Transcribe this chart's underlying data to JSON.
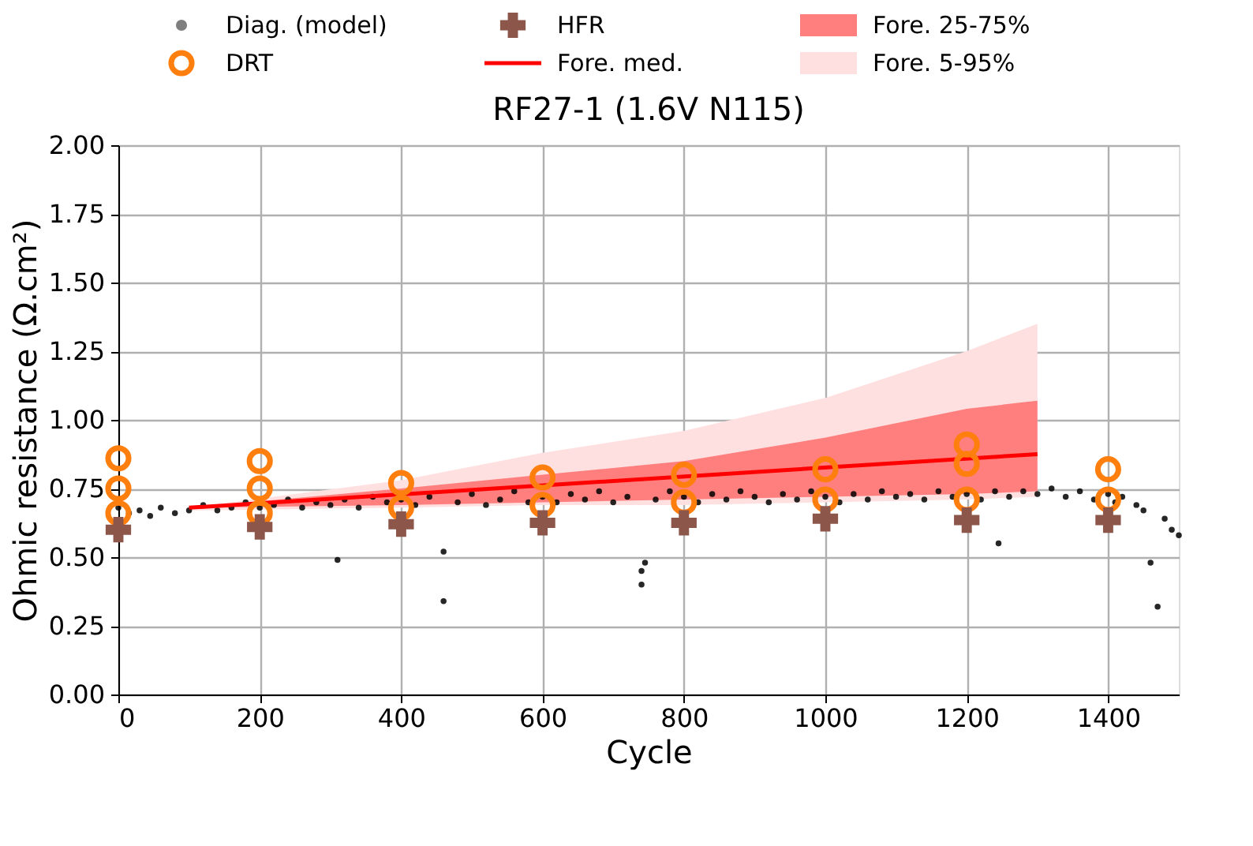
{
  "chart_data": {
    "type": "scatter",
    "title": "RF27-1 (1.6V N115)",
    "xlabel": "Cycle",
    "ylabel": "Ohmic resistance (Ω.cm²)",
    "xlim": [
      0,
      1500
    ],
    "xticks": [
      0,
      200,
      400,
      600,
      800,
      1000,
      1200,
      1400
    ],
    "ylim": [
      0,
      2
    ],
    "yticks": [
      {
        "value": 0,
        "label": "0.00"
      },
      {
        "value": 0.25,
        "label": "0.25"
      },
      {
        "value": 0.5,
        "label": "0.50"
      },
      {
        "value": 0.75,
        "label": "0.75"
      },
      {
        "value": 1,
        "label": "1.00"
      },
      {
        "value": 1.25,
        "label": "1.25"
      },
      {
        "value": 1.5,
        "label": "1.50"
      },
      {
        "value": 1.75,
        "label": "1.75"
      },
      {
        "value": 2,
        "label": "2.00"
      }
    ],
    "grid": true,
    "legend": "top",
    "series": [
      {
        "name": "Fore. 5-95%",
        "type": "line",
        "color": "#ffe0e0",
        "x": [
          100,
          400,
          600,
          800,
          1000,
          1200,
          1300
        ],
        "values": [
          null,
          null,
          null,
          null,
          null,
          null,
          null
        ],
        "lower": [
          0.67,
          0.68,
          0.69,
          0.69,
          0.7,
          0.71,
          0.72
        ],
        "upper": [
          0.68,
          0.78,
          0.88,
          0.96,
          1.08,
          1.25,
          1.35
        ]
      },
      {
        "name": "Fore. 25-75%",
        "type": "line",
        "color": "#ff7f7f",
        "x": [
          100,
          400,
          600,
          800,
          1000,
          1200,
          1300
        ],
        "values": [
          null,
          null,
          null,
          null,
          null,
          null,
          null
        ],
        "lower": [
          0.68,
          0.69,
          0.7,
          0.71,
          0.72,
          0.73,
          0.74
        ],
        "upper": [
          0.68,
          0.75,
          0.8,
          0.85,
          0.935,
          1.04,
          1.07
        ]
      },
      {
        "name": "Diag. (model)",
        "color": "#000000",
        "x": [
          0,
          15,
          30,
          45,
          60,
          80,
          100,
          120,
          140,
          160,
          180,
          200,
          220,
          240,
          260,
          280,
          300,
          310,
          320,
          340,
          360,
          380,
          400,
          420,
          440,
          460,
          460,
          480,
          500,
          520,
          540,
          560,
          580,
          600,
          620,
          640,
          660,
          680,
          700,
          720,
          740,
          740,
          745,
          760,
          780,
          800,
          820,
          840,
          860,
          880,
          900,
          920,
          940,
          960,
          980,
          1000,
          1020,
          1040,
          1060,
          1080,
          1100,
          1120,
          1140,
          1160,
          1180,
          1200,
          1220,
          1240,
          1245,
          1260,
          1280,
          1300,
          1320,
          1340,
          1360,
          1380,
          1400,
          1410,
          1420,
          1440,
          1450,
          1460,
          1470,
          1480,
          1490,
          1500
        ],
        "values": [
          0.68,
          0.66,
          0.67,
          0.65,
          0.68,
          0.66,
          0.67,
          0.69,
          0.67,
          0.68,
          0.7,
          0.68,
          0.69,
          0.71,
          0.68,
          0.7,
          0.69,
          0.49,
          0.71,
          0.68,
          0.72,
          0.7,
          0.71,
          0.69,
          0.72,
          0.34,
          0.52,
          0.7,
          0.73,
          0.69,
          0.71,
          0.74,
          0.7,
          0.72,
          0.7,
          0.73,
          0.71,
          0.74,
          0.7,
          0.72,
          0.4,
          0.45,
          0.48,
          0.71,
          0.74,
          0.72,
          0.7,
          0.73,
          0.71,
          0.74,
          0.72,
          0.7,
          0.73,
          0.71,
          0.74,
          0.72,
          0.7,
          0.73,
          0.71,
          0.74,
          0.72,
          0.73,
          0.71,
          0.74,
          0.72,
          0.73,
          0.71,
          0.74,
          0.55,
          0.72,
          0.74,
          0.73,
          0.75,
          0.72,
          0.74,
          0.71,
          0.73,
          0.7,
          0.72,
          0.69,
          0.67,
          0.48,
          0.32,
          0.64,
          0.6,
          0.58
        ]
      },
      {
        "name": "Fore. med.",
        "type": "line",
        "color": "#ff0000",
        "x": [
          100,
          1300
        ],
        "values": [
          0.68,
          0.875
        ]
      },
      {
        "name": "DRT",
        "marker": "circle",
        "color": "#ff7f0e",
        "x": [
          0,
          0,
          0,
          200,
          200,
          200,
          400,
          400,
          600,
          600,
          800,
          800,
          1000,
          1000,
          1200,
          1200,
          1200,
          1400,
          1400
        ],
        "values": [
          0.86,
          0.75,
          0.66,
          0.85,
          0.75,
          0.66,
          0.77,
          0.68,
          0.79,
          0.69,
          0.8,
          0.7,
          0.82,
          0.71,
          0.91,
          0.84,
          0.71,
          0.82,
          0.71
        ]
      },
      {
        "name": "HFR",
        "marker": "cross",
        "color": "#8c564b",
        "x": [
          0,
          200,
          400,
          600,
          800,
          1000,
          1200,
          1400
        ],
        "values": [
          0.6,
          0.61,
          0.62,
          0.625,
          0.625,
          0.64,
          0.635,
          0.635
        ]
      }
    ]
  }
}
